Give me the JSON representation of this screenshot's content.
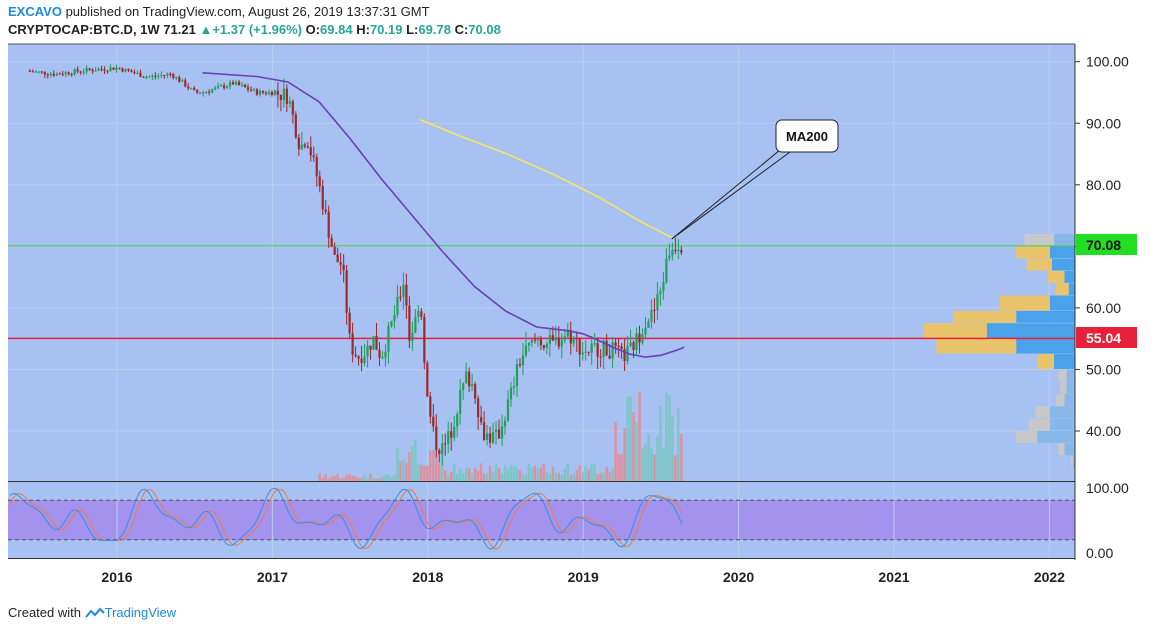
{
  "header": {
    "publisher": "EXCAVO",
    "published_text": "published on TradingView.com, August 26, 2019 13:37:31 GMT",
    "symbol": "CRYPTOCAP:BTC.D, 1W",
    "last_price": "71.21",
    "change_arrow": "▲",
    "change": "+1.37 (+1.96%)",
    "open_label": "O:",
    "open": "69.84",
    "high_label": "H:",
    "high": "70.19",
    "low_label": "L:",
    "low": "69.78",
    "close_label": "C:",
    "close": "70.08"
  },
  "footer": {
    "created_with": "Created with",
    "brand": "TradingView"
  },
  "colors": {
    "plot_bg": "#a6c1f2",
    "up": "#22a05a",
    "down": "#a02828",
    "ma_purple": "#6b3fb8",
    "ma200_yellow": "#f5e663",
    "red_level": "#e8203a",
    "green_level": "#3ecf3e",
    "vp_blue": "#4aa3ea",
    "vp_yellow": "#e9c46a",
    "vp_gray": "#c8c8c8",
    "stoch_band": "#a393ef",
    "stoch_k": "#3d8ee0",
    "stoch_d": "#f07b3f"
  },
  "chart_data": {
    "type": "candlestick",
    "title": "CRYPTOCAP:BTC.D, 1W",
    "price_axis": {
      "ylim": [
        30,
        103
      ],
      "ticks": [
        "100.00",
        "90.00",
        "80.00",
        "70.00",
        "60.00",
        "50.00",
        "40.00"
      ]
    },
    "x_ticks": [
      "2016",
      "2017",
      "2018",
      "2019",
      "2020",
      "2021",
      "2022"
    ],
    "price_labels": {
      "current": "70.08",
      "level": "55.04"
    },
    "horizontal_levels": [
      {
        "value": 55.04,
        "color": "red"
      },
      {
        "value": 70.08,
        "color": "green"
      }
    ],
    "annotation": {
      "text": "MA200",
      "target": [
        2019.57,
        71.2
      ]
    },
    "close_series": {
      "x": [
        2015.42,
        2015.6,
        2015.8,
        2016.0,
        2016.2,
        2016.35,
        2016.5,
        2016.55,
        2016.75,
        2016.9,
        2017.0,
        2017.1,
        2017.18,
        2017.22,
        2017.3,
        2017.35,
        2017.4,
        2017.45,
        2017.5,
        2017.55,
        2017.6,
        2017.65,
        2017.7,
        2017.8,
        2017.85,
        2017.88,
        2017.92,
        2017.95,
        2018.0,
        2018.05,
        2018.1,
        2018.15,
        2018.2,
        2018.25,
        2018.3,
        2018.35,
        2018.4,
        2018.45,
        2018.5,
        2018.6,
        2018.7,
        2018.8,
        2018.9,
        2019.0,
        2019.1,
        2019.2,
        2019.25,
        2019.3,
        2019.35,
        2019.4,
        2019.45,
        2019.5,
        2019.55,
        2019.6,
        2019.65
      ],
      "y": [
        98.5,
        98,
        98.6,
        99,
        97.5,
        98,
        95,
        95,
        96.5,
        95,
        95,
        94.5,
        86,
        88,
        80,
        74,
        68,
        67,
        54,
        52,
        53,
        55,
        52,
        60,
        65,
        55,
        58,
        62,
        44,
        38,
        37,
        40,
        45,
        49,
        47,
        40,
        39,
        39,
        43,
        52,
        55,
        54,
        56,
        53,
        53.5,
        53,
        52,
        53,
        55,
        58,
        59,
        63,
        69,
        70.5,
        70.08
      ]
    },
    "ma_purple": {
      "x": [
        2016.55,
        2016.9,
        2017.1,
        2017.3,
        2017.5,
        2017.7,
        2017.9,
        2018.1,
        2018.3,
        2018.5,
        2018.7,
        2018.9,
        2019.0,
        2019.1,
        2019.2,
        2019.3,
        2019.4,
        2019.5,
        2019.6,
        2019.65
      ],
      "y": [
        98.2,
        97.6,
        96.7,
        93.5,
        87.5,
        81,
        75,
        69,
        63.5,
        59.5,
        56.9,
        56.3,
        55.8,
        54.7,
        53.5,
        52.5,
        52,
        52.3,
        53.1,
        53.6
      ]
    },
    "ma200": {
      "x": [
        2017.95,
        2018.2,
        2018.5,
        2018.8,
        2019.1,
        2019.35,
        2019.57
      ],
      "y": [
        90.6,
        88,
        85.1,
        81.8,
        78,
        74.3,
        71.4
      ]
    },
    "volume_profile": {
      "rows": [
        {
          "low": 70,
          "high": 72,
          "up": 7,
          "down": 5
        },
        {
          "low": 68,
          "high": 70,
          "up": 8,
          "down": 6
        },
        {
          "low": 66,
          "high": 68,
          "up": 6,
          "down": 5.5
        },
        {
          "low": 64,
          "high": 66,
          "up": 4,
          "down": 2.5
        },
        {
          "low": 62,
          "high": 64,
          "up": 3,
          "down": 1.5
        },
        {
          "low": 59.5,
          "high": 62,
          "up": 12,
          "down": 6
        },
        {
          "low": 57.5,
          "high": 59.5,
          "up": 15,
          "down": 14
        },
        {
          "low": 55,
          "high": 57.5,
          "up": 15,
          "down": 21
        },
        {
          "low": 52.5,
          "high": 55,
          "up": 19,
          "down": 14
        },
        {
          "low": 50,
          "high": 52.5,
          "up": 4,
          "down": 5
        },
        {
          "low": 48,
          "high": 50,
          "up": 2,
          "down": 2
        },
        {
          "low": 46,
          "high": 48,
          "up": 1.5,
          "down": 2
        },
        {
          "low": 44,
          "high": 46,
          "up": 2,
          "down": 2.5
        },
        {
          "low": 42,
          "high": 44,
          "up": 3.5,
          "down": 6
        },
        {
          "low": 40,
          "high": 42,
          "up": 5,
          "down": 6
        },
        {
          "low": 38,
          "high": 40,
          "up": 5,
          "down": 9
        },
        {
          "low": 36,
          "high": 38,
          "up": 1.5,
          "down": 2.5
        },
        {
          "low": 34,
          "high": 36,
          "up": 0.5,
          "down": 0.5
        }
      ]
    },
    "stoch_rsi": {
      "ylim": [
        0,
        100
      ],
      "ticks": [
        "100.00",
        "0.00"
      ],
      "upper_band": 80,
      "lower_band": 20
    }
  }
}
